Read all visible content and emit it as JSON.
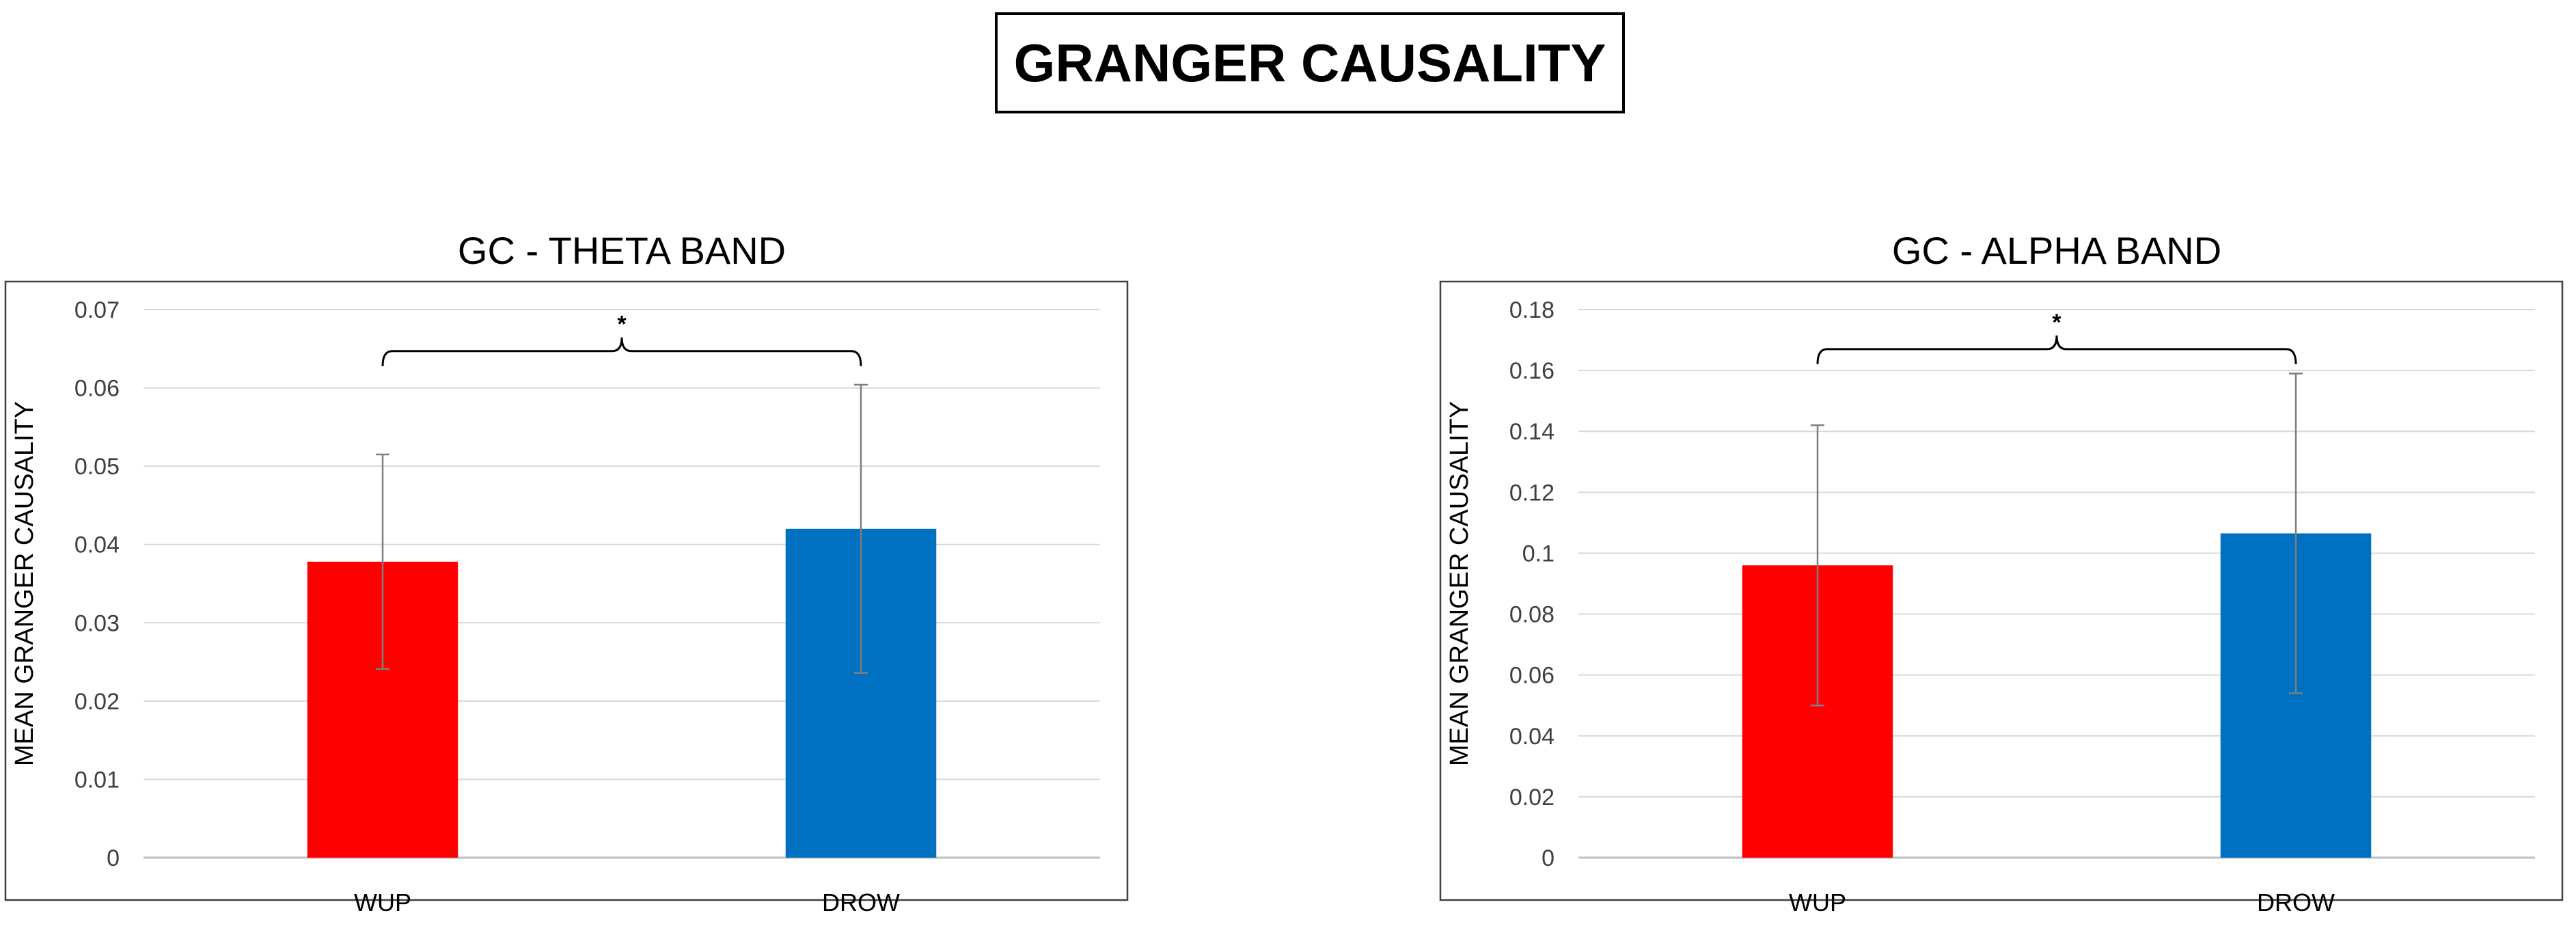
{
  "page_title": "GRANGER CAUSALITY",
  "chart_data": [
    {
      "type": "bar",
      "title": "GC - THETA BAND",
      "ylabel": "MEAN GRANGER CAUSALITY",
      "xlabel": "",
      "categories": [
        "WUP",
        "DROW"
      ],
      "values": [
        0.0378,
        0.042
      ],
      "error": [
        0.0137,
        0.0184
      ],
      "colors": [
        "#ff0000",
        "#0070c0"
      ],
      "ylim": [
        0,
        0.07
      ],
      "yticks": [
        0,
        0.01,
        0.02,
        0.03,
        0.04,
        0.05,
        0.06,
        0.07
      ],
      "ytick_labels": [
        "0",
        "0.01",
        "0.02",
        "0.03",
        "0.04",
        "0.05",
        "0.06",
        "0.07"
      ],
      "grid": true,
      "significance": {
        "pair": [
          "WUP",
          "DROW"
        ],
        "marker": "*",
        "bracket_level": 0.0647
      }
    },
    {
      "type": "bar",
      "title": "GC - ALPHA BAND",
      "ylabel": "MEAN GRANGER CAUSALITY",
      "xlabel": "",
      "categories": [
        "WUP",
        "DROW"
      ],
      "values": [
        0.096,
        0.1065
      ],
      "error": [
        0.046,
        0.0525
      ],
      "colors": [
        "#ff0000",
        "#0070c0"
      ],
      "ylim": [
        0,
        0.18
      ],
      "yticks": [
        0,
        0.02,
        0.04,
        0.06,
        0.08,
        0.1,
        0.12,
        0.14,
        0.16,
        0.18
      ],
      "ytick_labels": [
        "0",
        "0.02",
        "0.04",
        "0.06",
        "0.08",
        "0.1",
        "0.12",
        "0.14",
        "0.16",
        "0.18"
      ],
      "grid": true,
      "significance": {
        "pair": [
          "WUP",
          "DROW"
        ],
        "marker": "*",
        "bracket_level": 0.167
      }
    }
  ]
}
